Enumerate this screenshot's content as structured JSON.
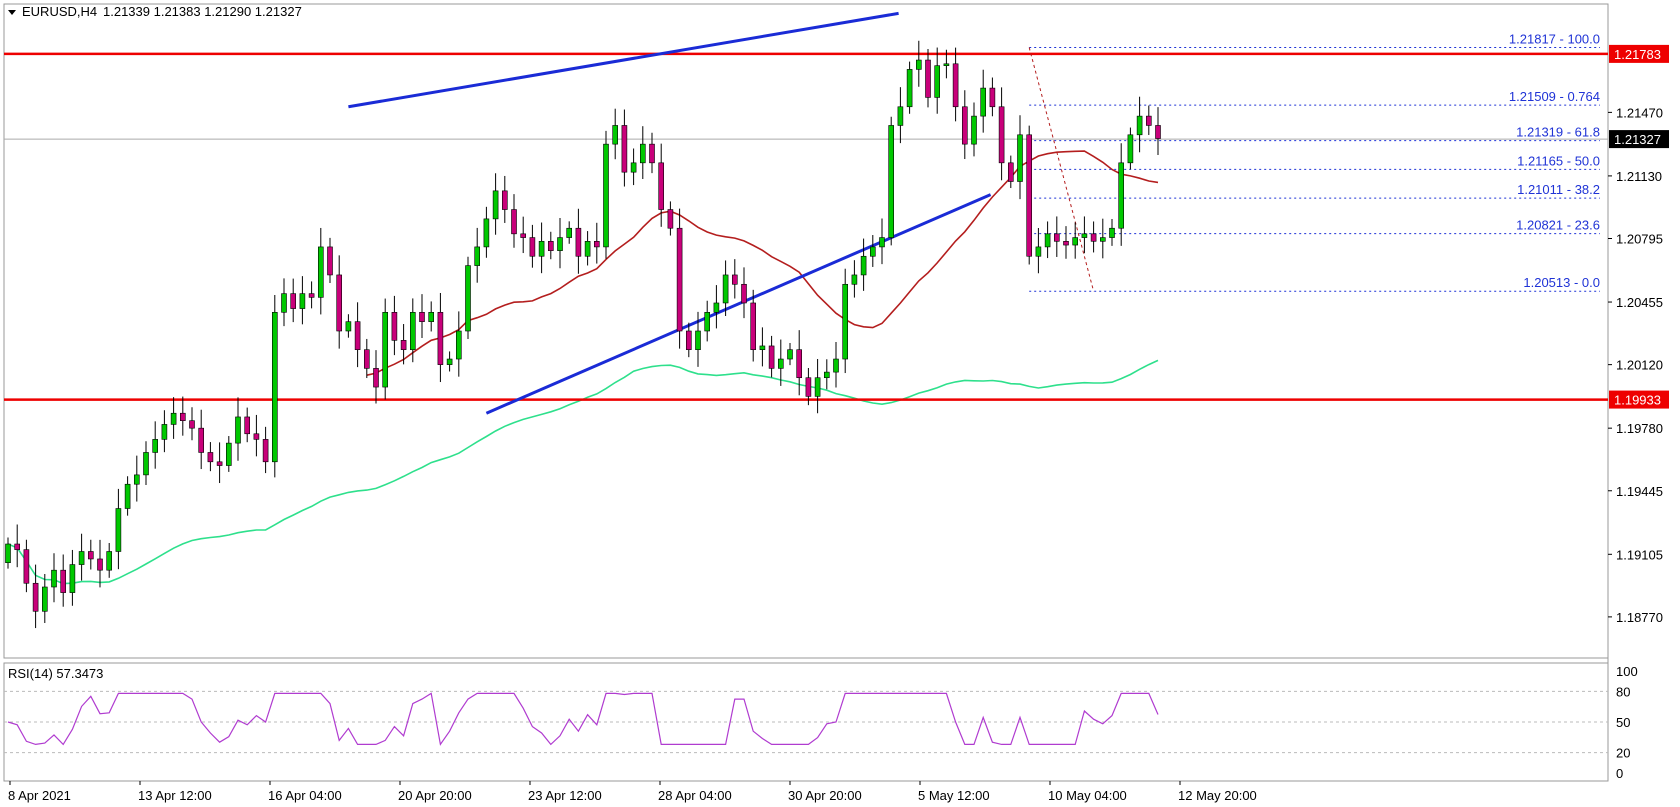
{
  "header": {
    "symbol": "EURUSD,H4",
    "ohlc": "1.21339 1.21383 1.21290 1.21327"
  },
  "current_price": "1.21327",
  "rsi_label": "RSI(14) 57.3473",
  "colors": {
    "bull": "#00c800",
    "bear": "#c8007a",
    "resistance": "#ee0000",
    "trendline": "#1a2bd6",
    "ma_fast": "#b41e1e",
    "ma_slow": "#2ee08c",
    "rsi": "#b03cd0",
    "fib": "#1f33d6"
  },
  "chart_data": {
    "type": "candlestick",
    "symbol": "EURUSD",
    "timeframe": "H4",
    "ylim": [
      1.1855,
      1.2205
    ],
    "price_ticks": [
      "1.21470",
      "1.21130",
      "1.20795",
      "1.20455",
      "1.20120",
      "1.19780",
      "1.19445",
      "1.19105",
      "1.18770"
    ],
    "x_ticks": [
      "8 Apr 2021",
      "13 Apr 12:00",
      "16 Apr 04:00",
      "20 Apr 20:00",
      "23 Apr 12:00",
      "28 Apr 04:00",
      "30 Apr 20:00",
      "5 May 12:00",
      "10 May 04:00",
      "12 May 20:00"
    ],
    "levels": [
      {
        "price": 1.21783,
        "label": "1.21783"
      },
      {
        "price": 1.19933,
        "label": "1.19933"
      }
    ],
    "fibonacci": [
      {
        "price": 1.21817,
        "label": "1.21817 - 100.0"
      },
      {
        "price": 1.21509,
        "label": "1.21509 - 0.764"
      },
      {
        "price": 1.21319,
        "label": "1.21319 - 61.8"
      },
      {
        "price": 1.21165,
        "label": "1.21165 - 50.0"
      },
      {
        "price": 1.21011,
        "label": "1.21011 - 38.2"
      },
      {
        "price": 1.20821,
        "label": "1.20821 - 23.6"
      },
      {
        "price": 1.20513,
        "label": "1.20513 - 0.0"
      }
    ],
    "trendlines": [
      {
        "name": "upper",
        "from": [
          37,
          1.215
        ],
        "to": [
          93,
          1.22
        ]
      },
      {
        "name": "lower",
        "from": [
          52,
          1.1986
        ],
        "to": [
          103,
          1.2103
        ]
      }
    ],
    "closes": [
      1.1916,
      1.1913,
      1.1895,
      1.188,
      1.1893,
      1.1902,
      1.189,
      1.1905,
      1.1912,
      1.1908,
      1.1902,
      1.1912,
      1.1935,
      1.1948,
      1.1953,
      1.1965,
      1.1972,
      1.198,
      1.1986,
      1.1982,
      1.1978,
      1.1965,
      1.196,
      1.1958,
      1.197,
      1.1984,
      1.1975,
      1.1972,
      1.196,
      1.204,
      1.205,
      1.2042,
      1.205,
      1.2048,
      1.2075,
      1.206,
      1.203,
      1.2035,
      1.202,
      1.201,
      1.2,
      1.204,
      1.2025,
      1.202,
      1.204,
      1.2035,
      1.204,
      1.2012,
      1.2015,
      1.203,
      1.2065,
      1.2075,
      1.209,
      1.2105,
      1.2095,
      1.2082,
      1.208,
      1.207,
      1.2078,
      1.2073,
      1.208,
      1.2085,
      1.207,
      1.2078,
      1.2075,
      1.213,
      1.214,
      1.2115,
      1.212,
      1.213,
      1.212,
      1.2095,
      1.2085,
      1.203,
      1.202,
      1.203,
      1.204,
      1.2045,
      1.206,
      1.2055,
      1.2045,
      1.202,
      1.2022,
      1.201,
      1.2015,
      1.202,
      1.2005,
      1.1995,
      1.2005,
      1.2008,
      1.2015,
      1.2055,
      1.206,
      1.207,
      1.2075,
      1.208,
      1.214,
      1.215,
      1.217,
      1.2175,
      1.2155,
      1.2172,
      1.2173,
      1.215,
      1.213,
      1.2145,
      1.216,
      1.215,
      1.212,
      1.211,
      1.2135,
      1.207,
      1.2075,
      1.2082,
      1.2078,
      1.2076,
      1.208,
      1.2082,
      1.2078,
      1.208,
      1.2085,
      1.212,
      1.2135,
      1.2145,
      1.214,
      1.2133
    ],
    "rsi": {
      "name": "RSI(14)",
      "last": 57.3473,
      "ylim": [
        0,
        100
      ],
      "levels": [
        100,
        80,
        50,
        20,
        0
      ]
    }
  }
}
